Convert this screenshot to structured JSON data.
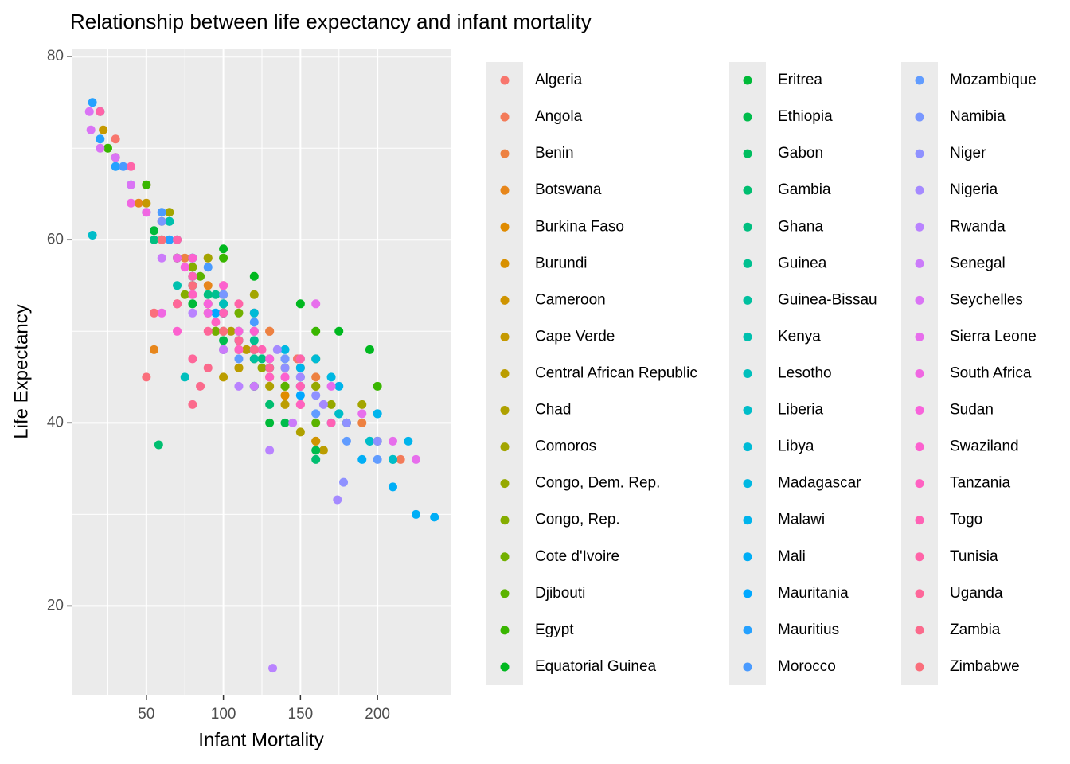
{
  "chart_data": {
    "type": "scatter",
    "title": "Relationship between life expectancy and infant mortality",
    "x_label": "Infant Mortality",
    "y_label": "Life Expectancy",
    "xlim": [
      1.5,
      248
    ],
    "ylim": [
      10.3,
      80.8
    ],
    "xticks": [
      50,
      100,
      150,
      200
    ],
    "yticks": [
      20,
      40,
      60,
      80
    ],
    "grid": true,
    "legend": "right",
    "series": [
      {
        "name": "Algeria",
        "color": "#F8766D",
        "x": [
          148,
          120,
          90,
          50,
          30,
          20
        ],
        "values": [
          47,
          52,
          58,
          66,
          71,
          74
        ]
      },
      {
        "name": "Angola",
        "color": "#F37B59",
        "x": [
          215,
          200,
          180,
          160,
          130
        ],
        "values": [
          36,
          38,
          40,
          44,
          50
        ]
      },
      {
        "name": "Benin",
        "color": "#ED8141",
        "x": [
          190,
          160,
          130,
          100,
          75
        ],
        "values": [
          40,
          45,
          50,
          55,
          58
        ]
      },
      {
        "name": "Botswana",
        "color": "#E7861B",
        "x": [
          120,
          90,
          60,
          45,
          55
        ],
        "values": [
          48,
          55,
          62,
          64,
          48
        ]
      },
      {
        "name": "Burkina Faso",
        "color": "#E08B00",
        "x": [
          160,
          140,
          110,
          90,
          80
        ],
        "values": [
          38,
          43,
          48,
          52,
          56
        ]
      },
      {
        "name": "Burundi",
        "color": "#D89000",
        "x": [
          150,
          140,
          120,
          110,
          95
        ],
        "values": [
          42,
          44,
          48,
          46,
          50
        ]
      },
      {
        "name": "Cameroon",
        "color": "#CF9400",
        "x": [
          160,
          130,
          100,
          80,
          70
        ],
        "values": [
          38,
          45,
          52,
          55,
          53
        ]
      },
      {
        "name": "Cape Verde",
        "color": "#C59900",
        "x": [
          100,
          70,
          50,
          30,
          22
        ],
        "values": [
          52,
          58,
          64,
          69,
          72
        ]
      },
      {
        "name": "Central African Republic",
        "color": "#BB9D00",
        "x": [
          165,
          140,
          115,
          110,
          100
        ],
        "values": [
          37,
          42,
          48,
          46,
          45
        ]
      },
      {
        "name": "Chad",
        "color": "#AFA100",
        "x": [
          150,
          130,
          120,
          110,
          105
        ],
        "values": [
          39,
          44,
          47,
          49,
          50
        ]
      },
      {
        "name": "Comoros",
        "color": "#A3A500",
        "x": [
          190,
          160,
          120,
          90,
          65
        ],
        "values": [
          42,
          47,
          54,
          58,
          63
        ]
      },
      {
        "name": "Congo, Dem. Rep.",
        "color": "#95A900",
        "x": [
          170,
          160,
          140,
          130,
          125
        ],
        "values": [
          42,
          44,
          46,
          47,
          46
        ]
      },
      {
        "name": "Congo, Rep.",
        "color": "#85AD00",
        "x": [
          130,
          100,
          80,
          70,
          75
        ],
        "values": [
          46,
          53,
          57,
          58,
          54
        ]
      },
      {
        "name": "Cote d'Ivoire",
        "color": "#72B000",
        "x": [
          180,
          150,
          110,
          100,
          95
        ],
        "values": [
          40,
          46,
          52,
          54,
          50
        ]
      },
      {
        "name": "Djibouti",
        "color": "#5BB300",
        "x": [
          160,
          140,
          110,
          90,
          85
        ],
        "values": [
          40,
          44,
          49,
          53,
          56
        ]
      },
      {
        "name": "Egypt",
        "color": "#39B600",
        "x": [
          200,
          160,
          100,
          50,
          25
        ],
        "values": [
          44,
          50,
          58,
          66,
          70
        ]
      },
      {
        "name": "Equatorial Guinea",
        "color": "#00B81F",
        "x": [
          195,
          175,
          150,
          120,
          100
        ],
        "values": [
          48,
          50,
          53,
          56,
          59
        ]
      },
      {
        "name": "Eritrea",
        "color": "#00BA38",
        "x": [
          130,
          120,
          100,
          80,
          55
        ],
        "values": [
          40,
          44,
          48,
          53,
          61
        ]
      },
      {
        "name": "Ethiopia",
        "color": "#00BC4C",
        "x": [
          160,
          140,
          120,
          100,
          80
        ],
        "values": [
          37,
          40,
          44,
          49,
          55
        ]
      },
      {
        "name": "Gabon",
        "color": "#00BD5F",
        "x": [
          130,
          100,
          80,
          65,
          60
        ],
        "values": [
          46,
          52,
          58,
          62,
          60
        ]
      },
      {
        "name": "Gambia",
        "color": "#00BE70",
        "x": [
          160,
          130,
          100,
          80,
          58
        ],
        "values": [
          36,
          42,
          50,
          56,
          37.6
        ]
      },
      {
        "name": "Ghana",
        "color": "#00BF80",
        "x": [
          125,
          110,
          90,
          70,
          55
        ],
        "values": [
          47,
          50,
          54,
          58,
          60
        ]
      },
      {
        "name": "Guinea",
        "color": "#00C090",
        "x": [
          200,
          180,
          150,
          120,
          95
        ],
        "values": [
          38,
          40,
          44,
          49,
          54
        ]
      },
      {
        "name": "Guinea-Bissau",
        "color": "#00C09F",
        "x": [
          210,
          195,
          175,
          150,
          120
        ],
        "values": [
          36,
          38,
          41,
          44,
          47
        ]
      },
      {
        "name": "Kenya",
        "color": "#00C0AE",
        "x": [
          120,
          100,
          80,
          65,
          70
        ],
        "values": [
          48,
          52,
          58,
          62,
          55
        ]
      },
      {
        "name": "Lesotho",
        "color": "#00BFBC",
        "x": [
          140,
          120,
          100,
          80,
          75
        ],
        "values": [
          47,
          50,
          53,
          56,
          45
        ]
      },
      {
        "name": "Liberia",
        "color": "#00BDC9",
        "x": [
          210,
          195,
          175,
          150,
          15
        ],
        "values": [
          36,
          38,
          41,
          45,
          60.5
        ]
      },
      {
        "name": "Libya",
        "color": "#00BBD6",
        "x": [
          160,
          120,
          80,
          40,
          20
        ],
        "values": [
          47,
          52,
          58,
          66,
          74
        ]
      },
      {
        "name": "Madagascar",
        "color": "#00B8E2",
        "x": [
          200,
          170,
          140,
          100,
          70
        ],
        "values": [
          41,
          45,
          48,
          52,
          60
        ]
      },
      {
        "name": "Malawi",
        "color": "#00B4EC",
        "x": [
          220,
          200,
          175,
          150,
          120
        ],
        "values": [
          38,
          41,
          44,
          46,
          48
        ]
      },
      {
        "name": "Mali",
        "color": "#00AEF6",
        "x": [
          237,
          225,
          210,
          190,
          170
        ],
        "values": [
          29.7,
          30,
          33,
          36,
          40
        ]
      },
      {
        "name": "Mauritania",
        "color": "#00A8FF",
        "x": [
          150,
          130,
          110,
          95,
          80
        ],
        "values": [
          43,
          46,
          49,
          52,
          55
        ]
      },
      {
        "name": "Mauritius",
        "color": "#25A1FF",
        "x": [
          65,
          50,
          30,
          20,
          15
        ],
        "values": [
          60,
          63,
          68,
          71,
          75
        ]
      },
      {
        "name": "Morocco",
        "color": "#4A9BFF",
        "x": [
          150,
          120,
          90,
          60,
          35
        ],
        "values": [
          47,
          51,
          57,
          63,
          68
        ]
      },
      {
        "name": "Mozambique",
        "color": "#619CFF",
        "x": [
          200,
          180,
          160,
          140,
          110
        ],
        "values": [
          36,
          38,
          41,
          45,
          47
        ]
      },
      {
        "name": "Namibia",
        "color": "#7997FF",
        "x": [
          140,
          120,
          100,
          80,
          60
        ],
        "values": [
          47,
          50,
          54,
          58,
          62
        ]
      },
      {
        "name": "Niger",
        "color": "#8F91FF",
        "x": [
          200,
          180,
          178,
          160,
          140
        ],
        "values": [
          38,
          40,
          33.5,
          43,
          46
        ]
      },
      {
        "name": "Nigeria",
        "color": "#A58AFF",
        "x": [
          174,
          165,
          150,
          135,
          120
        ],
        "values": [
          31.6,
          42,
          45,
          48,
          48
        ]
      },
      {
        "name": "Rwanda",
        "color": "#B983FF",
        "x": [
          132,
          130,
          110,
          100,
          80
        ],
        "values": [
          13.2,
          37,
          44,
          48,
          52
        ]
      },
      {
        "name": "Senegal",
        "color": "#CB7BFA",
        "x": [
          145,
          120,
          100,
          80,
          60
        ],
        "values": [
          40,
          44,
          48,
          54,
          58
        ]
      },
      {
        "name": "Seychelles",
        "color": "#DA74F5",
        "x": [
          40,
          30,
          20,
          14,
          13
        ],
        "values": [
          66,
          69,
          70,
          72,
          74
        ]
      },
      {
        "name": "Sierra Leone",
        "color": "#E76EEC",
        "x": [
          225,
          210,
          190,
          170,
          160
        ],
        "values": [
          36,
          38,
          41,
          44,
          53
        ]
      },
      {
        "name": "South Africa",
        "color": "#F067E2",
        "x": [
          90,
          70,
          50,
          40,
          60
        ],
        "values": [
          52,
          58,
          63,
          64,
          52
        ]
      },
      {
        "name": "Sudan",
        "color": "#F863DB",
        "x": [
          150,
          130,
          110,
          90,
          75
        ],
        "values": [
          44,
          47,
          50,
          53,
          57
        ]
      },
      {
        "name": "Swaziland",
        "color": "#FC61CF",
        "x": [
          140,
          120,
          100,
          80,
          70
        ],
        "values": [
          45,
          50,
          55,
          58,
          50
        ]
      },
      {
        "name": "Tanzania",
        "color": "#FF61C2",
        "x": [
          150,
          130,
          110,
          95,
          80
        ],
        "values": [
          42,
          45,
          48,
          51,
          54
        ]
      },
      {
        "name": "Togo",
        "color": "#FF62B5",
        "x": [
          170,
          150,
          125,
          100,
          80
        ],
        "values": [
          40,
          44,
          48,
          52,
          56
        ]
      },
      {
        "name": "Tunisia",
        "color": "#FF64A8",
        "x": [
          150,
          110,
          70,
          40,
          20
        ],
        "values": [
          47,
          53,
          60,
          68,
          74
        ]
      },
      {
        "name": "Uganda",
        "color": "#FE679A",
        "x": [
          130,
          110,
          90,
          80,
          70
        ],
        "values": [
          46,
          49,
          50,
          47,
          53
        ]
      },
      {
        "name": "Zambia",
        "color": "#FB6A8C",
        "x": [
          120,
          100,
          90,
          85,
          80
        ],
        "values": [
          48,
          50,
          46,
          44,
          42
        ]
      },
      {
        "name": "Zimbabwe",
        "color": "#FA6F7C",
        "x": [
          100,
          80,
          60,
          55,
          50
        ],
        "values": [
          50,
          55,
          60,
          52,
          45
        ]
      }
    ]
  }
}
